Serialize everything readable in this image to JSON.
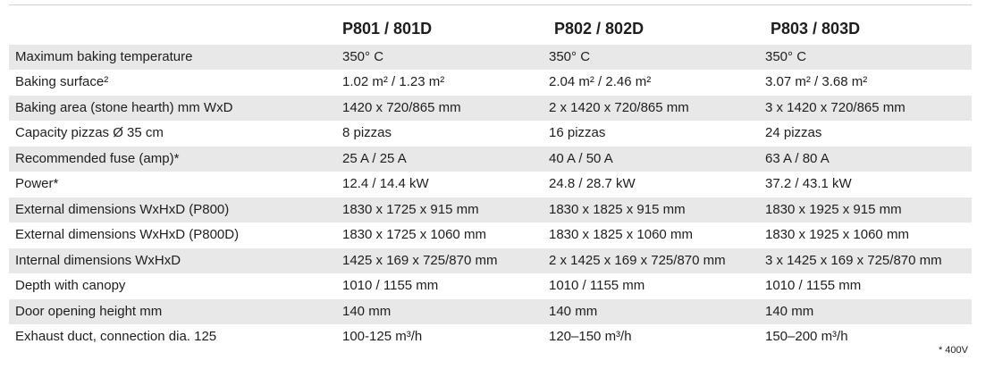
{
  "table": {
    "header": [
      "P801 / 801D",
      "P802 / 802D",
      "P803 / 803D"
    ],
    "rows": [
      [
        "Maximum baking temperature",
        "350° C",
        "350° C",
        "350° C"
      ],
      [
        "Baking surface²",
        "1.02 m² / 1.23 m²",
        "2.04 m² / 2.46 m²",
        "3.07 m² / 3.68 m²"
      ],
      [
        "Baking area (stone hearth) mm WxD",
        "1420 x 720/865 mm",
        "2 x 1420 x 720/865 mm",
        "3 x 1420 x 720/865 mm"
      ],
      [
        "Capacity pizzas Ø 35 cm",
        "8 pizzas",
        "16 pizzas",
        "24 pizzas"
      ],
      [
        "Recommended fuse (amp)*",
        "25 A / 25 A",
        "40 A / 50 A",
        "63 A / 80 A"
      ],
      [
        "Power*",
        "12.4 / 14.4 kW",
        "24.8 / 28.7 kW",
        "37.2 / 43.1 kW"
      ],
      [
        "External dimensions WxHxD (P800)",
        "1830 x 1725 x 915 mm",
        "1830 x 1825 x 915 mm",
        "1830 x 1925 x 915 mm"
      ],
      [
        "External dimensions WxHxD (P800D)",
        "1830 x 1725 x 1060 mm",
        "1830 x 1825 x 1060 mm",
        "1830 x 1925 x 1060 mm"
      ],
      [
        "Internal dimensions WxHxD",
        "1425 x 169 x 725/870 mm",
        "2 x 1425 x 169 x 725/870 mm",
        "3 x 1425 x 169 x 725/870 mm"
      ],
      [
        "Depth with canopy",
        "1010 / 1155 mm",
        "1010 / 1155 mm",
        "1010 / 1155 mm"
      ],
      [
        "Door opening height mm",
        "140 mm",
        "140 mm",
        "140 mm"
      ],
      [
        "Exhaust duct, connection dia. 125",
        "100-125 m³/h",
        "120–150 m³/h",
        "150–200 m³/h"
      ]
    ]
  },
  "footnote": "* 400V"
}
